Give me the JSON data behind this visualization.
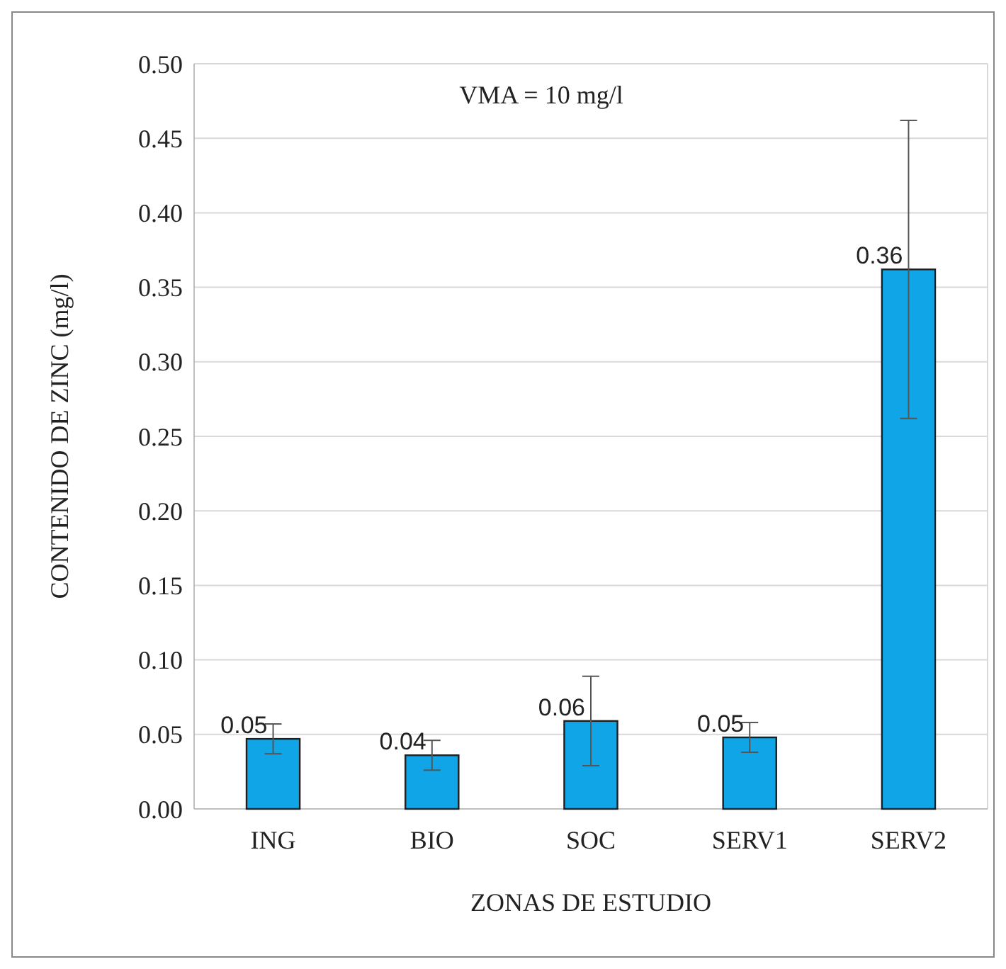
{
  "chart_data": {
    "type": "bar",
    "xlabel": "ZONAS DE ESTUDIO",
    "ylabel": "CONTENIDO DE ZINC (mg/l)",
    "categories": [
      "ING",
      "BIO",
      "SOC",
      "SERV1",
      "SERV2"
    ],
    "values": [
      0.047,
      0.036,
      0.059,
      0.048,
      0.362
    ],
    "errors": [
      0.01,
      0.01,
      0.03,
      0.01,
      0.1
    ],
    "value_labels": [
      "0.05",
      "0.04",
      "0.06",
      "0.05",
      "0.36"
    ],
    "color": "#0fa5e6",
    "ylim": [
      0,
      0.5
    ],
    "yticks": [
      {
        "value": 0,
        "label": "0.00"
      },
      {
        "value": 0.05,
        "label": "0.05"
      },
      {
        "value": 0.1,
        "label": "0.10"
      },
      {
        "value": 0.15,
        "label": "0.15"
      },
      {
        "value": 0.2,
        "label": "0.20"
      },
      {
        "value": 0.25,
        "label": "0.25"
      },
      {
        "value": 0.3,
        "label": "0.30"
      },
      {
        "value": 0.35,
        "label": "0.35"
      },
      {
        "value": 0.4,
        "label": "0.40"
      },
      {
        "value": 0.45,
        "label": "0.45"
      },
      {
        "value": 0.5,
        "label": "0.50"
      }
    ],
    "grid": "y",
    "annotations": [
      "VMA = 10 mg/l"
    ]
  }
}
